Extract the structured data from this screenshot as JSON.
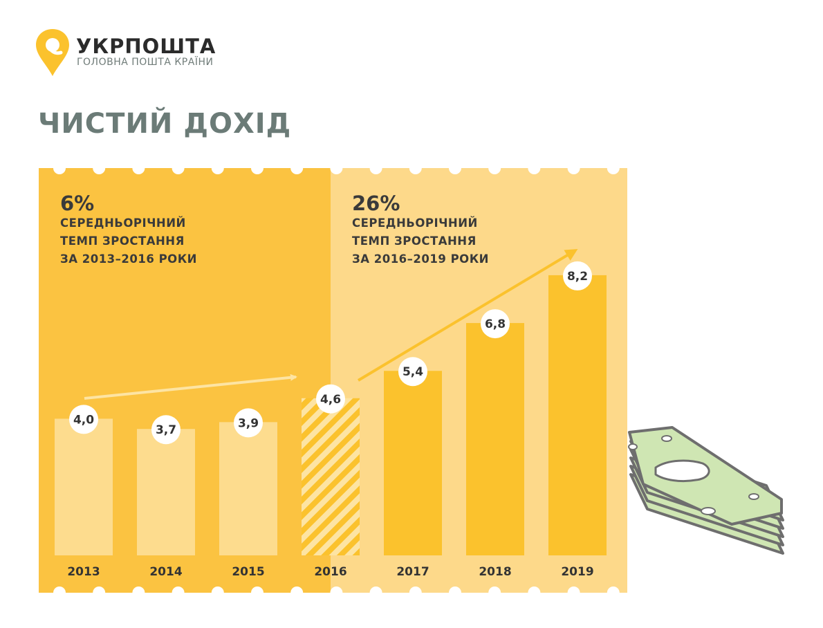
{
  "brand": {
    "name": "УКРПОШТА",
    "tagline": "ГОЛОВНА ПОШТА КРАЇНИ"
  },
  "title": "ЧИСТИЙ ДОХІД",
  "growth": {
    "left": {
      "percent": "6%",
      "lines": [
        "СЕРЕДНЬОРІЧНИЙ",
        "ТЕМП ЗРОСТАННЯ",
        "ЗА 2013–2016 РОКИ"
      ]
    },
    "right": {
      "percent": "26%",
      "lines": [
        "СЕРЕДНЬОРІЧНИЙ",
        "ТЕМП ЗРОСТАННЯ",
        "ЗА 2016–2019 РОКИ"
      ]
    }
  },
  "colors": {
    "panel_left": "#fbc341",
    "panel_right": "#fdd98a",
    "bar_early": "#fddc8e",
    "bar_late": "#fbc22d",
    "arrow_early": "#fde4a3",
    "arrow_late": "#fbc22d",
    "logo": "#fbc22d"
  },
  "chart_data": {
    "type": "bar",
    "categories": [
      "2013",
      "2014",
      "2015",
      "2016",
      "2017",
      "2018",
      "2019"
    ],
    "values": [
      4.0,
      3.7,
      3.9,
      4.6,
      5.4,
      6.8,
      8.2
    ],
    "value_labels": [
      "4,0",
      "3,7",
      "3,9",
      "4,6",
      "5,4",
      "6,8",
      "8,2"
    ],
    "bar_style": [
      "light",
      "light",
      "light",
      "hatched",
      "dark",
      "dark",
      "dark"
    ],
    "title": "ЧИСТИЙ ДОХІД",
    "xlabel": "",
    "ylabel": "",
    "grid": false,
    "legend": "none"
  }
}
